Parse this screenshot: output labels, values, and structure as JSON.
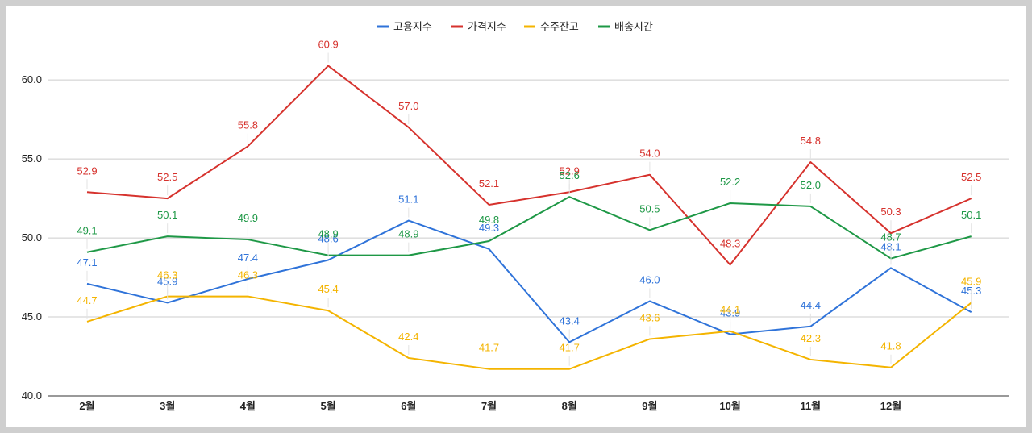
{
  "chart_data": {
    "type": "line",
    "categories": [
      "2월",
      "3월",
      "4월",
      "5월",
      "6월",
      "7월",
      "8월",
      "9월",
      "10월",
      "11월",
      "12월",
      ""
    ],
    "ylim": [
      40,
      62
    ],
    "yticks": [
      "40.0",
      "45.0",
      "50.0",
      "55.0",
      "60.0"
    ],
    "ytick_values": [
      40,
      45,
      50,
      55,
      60
    ],
    "grid": true,
    "legend_position": "top",
    "series": [
      {
        "name": "고용지수",
        "color": "#2f73d9",
        "values": [
          47.1,
          45.9,
          47.4,
          48.6,
          51.1,
          49.3,
          43.4,
          46.0,
          43.9,
          44.4,
          48.1,
          45.3
        ],
        "labels": [
          "47.1",
          "45.9",
          "47.4",
          "48.6",
          "51.1",
          "49.3",
          "43.4",
          "46.0",
          "43.9",
          "44.4",
          "48.1",
          "45.3"
        ]
      },
      {
        "name": "가격지수",
        "color": "#d6322d",
        "values": [
          52.9,
          52.5,
          55.8,
          60.9,
          57.0,
          52.1,
          52.9,
          54.0,
          48.3,
          54.8,
          50.3,
          52.5
        ],
        "labels": [
          "52.9",
          "52.5",
          "55.8",
          "60.9",
          "57.0",
          "52.1",
          "52.9",
          "54.0",
          "48.3",
          "54.8",
          "50.3",
          "52.5"
        ]
      },
      {
        "name": "수주잔고",
        "color": "#f4b400",
        "values": [
          44.7,
          46.3,
          46.3,
          45.4,
          42.4,
          41.7,
          41.7,
          43.6,
          44.1,
          42.3,
          41.8,
          45.9
        ],
        "labels": [
          "44.7",
          "46.3",
          "46.3",
          "45.4",
          "42.4",
          "41.7",
          "41.7",
          "43.6",
          "44.1",
          "42.3",
          "41.8",
          "45.9"
        ]
      },
      {
        "name": "배송시간",
        "color": "#1e9846",
        "values": [
          49.1,
          50.1,
          49.9,
          48.9,
          48.9,
          49.8,
          52.6,
          50.5,
          52.2,
          52.0,
          48.7,
          50.1
        ],
        "labels": [
          "49.1",
          "50.1",
          "49.9",
          "48.9",
          "48.9",
          "49.8",
          "52.6",
          "50.5",
          "52.2",
          "52.0",
          "48.7",
          "50.1"
        ]
      }
    ]
  }
}
